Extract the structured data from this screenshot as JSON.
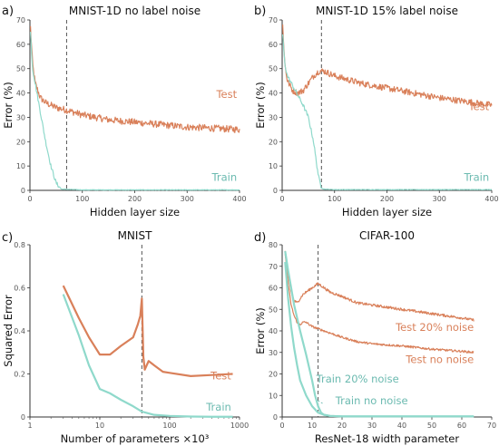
{
  "colors": {
    "test": "#d9805a",
    "train": "#8fd9cb",
    "train_label": "#6bbab0",
    "test_label": "#d9805a",
    "dashed": "#555555"
  },
  "chart_data": [
    {
      "id": "a",
      "panel_letter": "a)",
      "type": "line",
      "title": "MNIST-1D no label noise",
      "xlabel": "Hidden layer size",
      "ylabel": "Error (%)",
      "xlim": [
        0,
        400
      ],
      "ylim": [
        0,
        70
      ],
      "xticks": [
        0,
        100,
        200,
        300,
        400
      ],
      "yticks": [
        0,
        10,
        20,
        30,
        40,
        50,
        60,
        70
      ],
      "vline": 70,
      "series": [
        {
          "name": "Test",
          "color": "test",
          "noise": 1.4,
          "x": [
            1,
            5,
            10,
            20,
            30,
            50,
            70,
            100,
            150,
            200,
            250,
            300,
            350,
            400
          ],
          "y": [
            67,
            52,
            44,
            38,
            36,
            34,
            33,
            31,
            29,
            28,
            27,
            26,
            25.5,
            25
          ]
        },
        {
          "name": "Train",
          "color": "train",
          "noise": 0.8,
          "x": [
            1,
            5,
            10,
            20,
            30,
            40,
            50,
            60,
            100,
            200,
            300,
            400
          ],
          "y": [
            65,
            50,
            44,
            32,
            20,
            10,
            3,
            0.5,
            0.2,
            0.2,
            0.2,
            0.2
          ]
        }
      ],
      "labels": [
        {
          "text": "Test",
          "color": "test_label",
          "x": 395,
          "y": 38
        },
        {
          "text": "Train",
          "color": "train_label",
          "x": 395,
          "y": 4
        }
      ]
    },
    {
      "id": "b",
      "panel_letter": "b)",
      "type": "line",
      "title": "MNIST-1D 15% label noise",
      "xlabel": "Hidden layer size",
      "ylabel": "Error (%)",
      "xlim": [
        0,
        400
      ],
      "ylim": [
        0,
        70
      ],
      "xticks": [
        0,
        100,
        200,
        300,
        400
      ],
      "yticks": [
        0,
        10,
        20,
        30,
        40,
        50,
        60,
        70
      ],
      "vline": 75,
      "series": [
        {
          "name": "Test",
          "color": "test",
          "noise": 1.3,
          "x": [
            1,
            5,
            10,
            20,
            30,
            40,
            50,
            60,
            70,
            80,
            100,
            150,
            200,
            250,
            300,
            350,
            400
          ],
          "y": [
            68,
            52,
            45,
            41,
            40,
            41,
            44,
            47,
            49,
            49,
            47,
            44,
            42,
            40,
            38,
            36.5,
            35
          ]
        },
        {
          "name": "Train",
          "color": "train",
          "noise": 0.8,
          "x": [
            1,
            5,
            10,
            20,
            30,
            40,
            50,
            60,
            65,
            70,
            75,
            80,
            100,
            200,
            300,
            400
          ],
          "y": [
            64,
            52,
            47,
            43,
            39,
            35,
            30,
            20,
            12,
            5,
            1,
            0.5,
            0.3,
            0.3,
            0.3,
            0.3
          ]
        }
      ],
      "labels": [
        {
          "text": "Test",
          "color": "test_label",
          "x": 395,
          "y": 33
        },
        {
          "text": "Train",
          "color": "train_label",
          "x": 395,
          "y": 4
        }
      ]
    },
    {
      "id": "c",
      "panel_letter": "c)",
      "type": "line",
      "xscale": "log",
      "title": "MNIST",
      "xlabel": "Number of parameters ×10³",
      "ylabel": "Squared Error",
      "xlim": [
        1,
        1000
      ],
      "ylim": [
        0,
        0.8
      ],
      "xticks": [
        1,
        10,
        100,
        1000
      ],
      "xticklabels": [
        "1",
        "10",
        "100",
        "1000"
      ],
      "yticks": [
        0,
        0.2,
        0.4,
        0.6,
        0.8
      ],
      "yticklabels": [
        "0",
        "0.2",
        "0.4",
        "0.6",
        "0.8"
      ],
      "vline": 40,
      "series": [
        {
          "name": "Test",
          "color": "test",
          "noise": 0,
          "x": [
            3,
            5,
            7,
            10,
            14,
            20,
            30,
            35,
            38,
            40,
            42,
            44,
            50,
            60,
            80,
            100,
            200,
            400,
            800
          ],
          "y": [
            0.61,
            0.46,
            0.37,
            0.29,
            0.29,
            0.33,
            0.37,
            0.43,
            0.47,
            0.55,
            0.28,
            0.22,
            0.26,
            0.24,
            0.21,
            0.205,
            0.19,
            0.195,
            0.2
          ]
        },
        {
          "name": "Train",
          "color": "train",
          "noise": 0,
          "x": [
            3,
            5,
            7,
            10,
            14,
            20,
            30,
            40,
            60,
            100,
            200,
            400,
            800
          ],
          "y": [
            0.57,
            0.38,
            0.24,
            0.13,
            0.11,
            0.08,
            0.05,
            0.025,
            0.01,
            0.005,
            0.002,
            0.001,
            0.001
          ]
        }
      ],
      "labels": [
        {
          "text": "Test",
          "color": "test_label",
          "x": 760,
          "y": 0.175
        },
        {
          "text": "Train",
          "color": "train_label",
          "x": 760,
          "y": 0.03
        }
      ]
    },
    {
      "id": "d",
      "panel_letter": "d)",
      "type": "line",
      "title": "CIFAR-100",
      "xlabel": "ResNet-18 width parameter",
      "ylabel": "Error (%)",
      "xlim": [
        0,
        70
      ],
      "ylim": [
        0,
        80
      ],
      "xticks": [
        0,
        10,
        20,
        30,
        40,
        50,
        60,
        70
      ],
      "yticks": [
        0,
        10,
        20,
        30,
        40,
        50,
        60,
        70,
        80
      ],
      "vline": 12,
      "series": [
        {
          "name": "Test 20% noise",
          "color": "test",
          "noise": 0.6,
          "x": [
            1,
            2,
            3,
            4,
            5,
            6,
            7,
            8,
            9,
            10,
            11,
            12,
            13,
            14,
            16,
            20,
            25,
            30,
            40,
            50,
            60,
            64
          ],
          "y": [
            77,
            66,
            58,
            54,
            53,
            55,
            57,
            58,
            59,
            60,
            61,
            62,
            61,
            60,
            58,
            56,
            53,
            52,
            50,
            48,
            46,
            45
          ]
        },
        {
          "name": "Test no noise",
          "color": "test",
          "noise": 0.5,
          "x": [
            1,
            2,
            3,
            4,
            5,
            6,
            7,
            8,
            9,
            10,
            12,
            14,
            16,
            20,
            25,
            30,
            40,
            50,
            60,
            64
          ],
          "y": [
            76,
            62,
            52,
            47,
            44,
            43,
            44,
            44,
            43,
            42,
            41,
            40,
            39,
            37,
            35,
            34,
            33,
            31.5,
            30.5,
            30
          ]
        },
        {
          "name": "Train 20% noise",
          "color": "train",
          "noise": 0,
          "x": [
            1,
            2,
            3,
            4,
            6,
            8,
            10,
            11,
            12,
            13,
            14,
            16,
            20,
            30,
            64
          ],
          "y": [
            77,
            68,
            60,
            52,
            40,
            29,
            17,
            10,
            5,
            2,
            1,
            0.5,
            0.3,
            0.3,
            0.3
          ]
        },
        {
          "name": "Train no noise",
          "color": "train",
          "noise": 0,
          "x": [
            1,
            2,
            3,
            4,
            5,
            6,
            8,
            10,
            12,
            14,
            16,
            20,
            30,
            64
          ],
          "y": [
            72,
            55,
            42,
            32,
            24,
            17,
            10,
            5,
            2,
            1,
            0.5,
            0.3,
            0.3,
            0.3
          ]
        }
      ],
      "labels": [
        {
          "text": "Test 20% noise",
          "color": "test_label",
          "x": 64,
          "y": 40
        },
        {
          "text": "Test no noise",
          "color": "test_label",
          "x": 64,
          "y": 25
        },
        {
          "text": "Train 20% noise",
          "color": "train_label",
          "x": 39,
          "y": 16
        },
        {
          "text": "Train no noise",
          "color": "train_label",
          "x": 42,
          "y": 6
        }
      ]
    }
  ]
}
